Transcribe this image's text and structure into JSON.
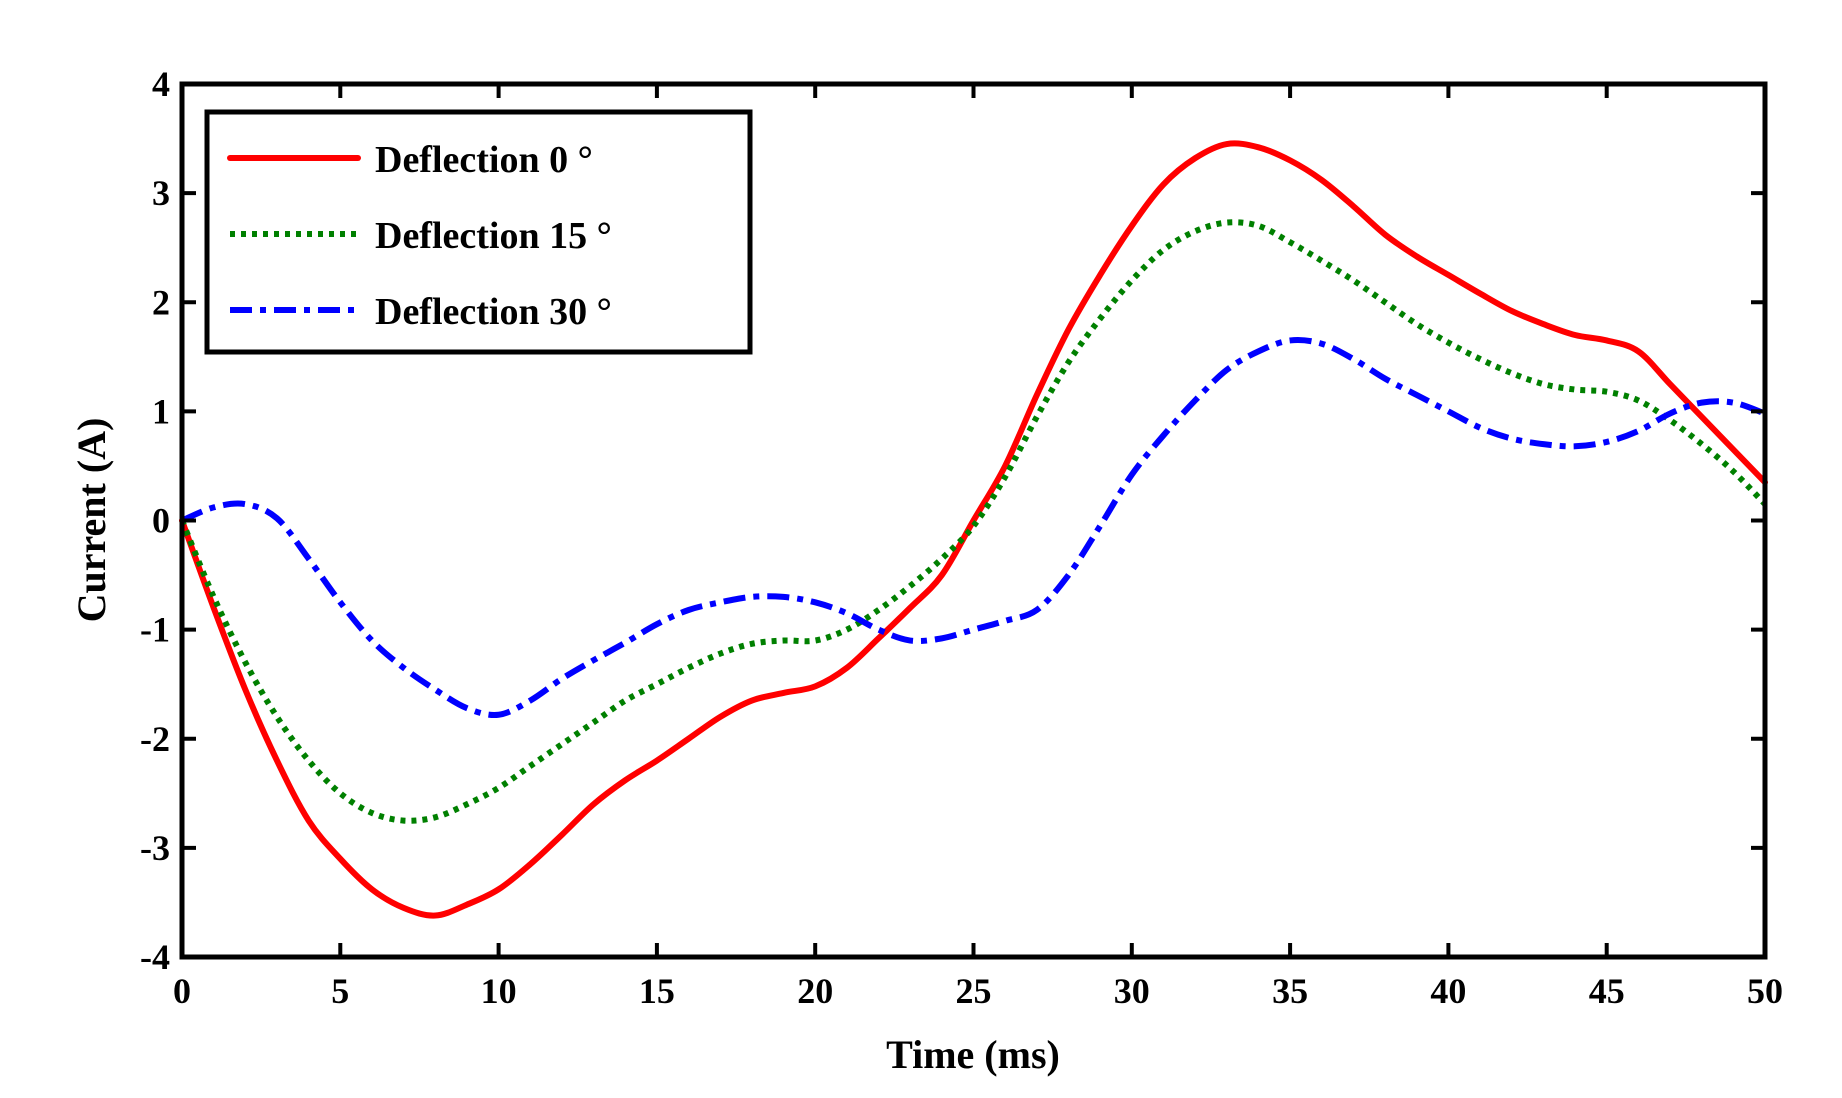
{
  "chart_data": {
    "type": "line",
    "title": "",
    "xlabel": "Time (ms)",
    "ylabel": "Current (A)",
    "xlim": [
      0,
      50
    ],
    "ylim": [
      -4,
      4
    ],
    "xticks": [
      0,
      5,
      10,
      15,
      20,
      25,
      30,
      35,
      40,
      45,
      50
    ],
    "yticks": [
      -4,
      -3,
      -2,
      -1,
      0,
      1,
      2,
      3,
      4
    ],
    "grid": false,
    "legend_position": "top-left",
    "series": [
      {
        "name": "Deflection 0 °",
        "color": "#ff0000",
        "style": "solid",
        "x": [
          0,
          1,
          2,
          3,
          4,
          5,
          6,
          7,
          8,
          9,
          10,
          11,
          12,
          13,
          14,
          15,
          16,
          17,
          18,
          19,
          20,
          21,
          22,
          23,
          24,
          25,
          26,
          27,
          28,
          29,
          30,
          31,
          32,
          33,
          34,
          35,
          36,
          37,
          38,
          39,
          40,
          41,
          42,
          43,
          44,
          45,
          46,
          47,
          48,
          49,
          50
        ],
        "y": [
          0,
          -0.8,
          -1.55,
          -2.2,
          -2.75,
          -3.1,
          -3.38,
          -3.55,
          -3.62,
          -3.52,
          -3.38,
          -3.15,
          -2.88,
          -2.6,
          -2.38,
          -2.2,
          -2.0,
          -1.8,
          -1.65,
          -1.58,
          -1.52,
          -1.35,
          -1.08,
          -0.8,
          -0.5,
          0.0,
          0.5,
          1.15,
          1.75,
          2.25,
          2.7,
          3.08,
          3.32,
          3.45,
          3.42,
          3.3,
          3.12,
          2.88,
          2.62,
          2.42,
          2.25,
          2.08,
          1.92,
          1.8,
          1.7,
          1.65,
          1.55,
          1.25,
          0.95,
          0.65,
          0.35
        ]
      },
      {
        "name": "Deflection 15 °",
        "color": "#008000",
        "style": "dotted",
        "x": [
          0,
          1,
          2,
          3,
          4,
          5,
          6,
          7,
          8,
          9,
          10,
          11,
          12,
          13,
          14,
          15,
          16,
          17,
          18,
          19,
          20,
          21,
          22,
          23,
          24,
          25,
          26,
          27,
          28,
          29,
          30,
          31,
          32,
          33,
          34,
          35,
          36,
          37,
          38,
          39,
          40,
          41,
          42,
          43,
          44,
          45,
          46,
          47,
          48,
          49,
          50
        ],
        "y": [
          0,
          -0.7,
          -1.3,
          -1.8,
          -2.2,
          -2.5,
          -2.68,
          -2.75,
          -2.72,
          -2.6,
          -2.45,
          -2.25,
          -2.05,
          -1.85,
          -1.65,
          -1.5,
          -1.35,
          -1.22,
          -1.13,
          -1.1,
          -1.1,
          -1.0,
          -0.82,
          -0.6,
          -0.35,
          -0.05,
          0.4,
          0.95,
          1.45,
          1.85,
          2.2,
          2.48,
          2.65,
          2.73,
          2.7,
          2.55,
          2.38,
          2.2,
          2.0,
          1.8,
          1.63,
          1.48,
          1.35,
          1.25,
          1.2,
          1.18,
          1.1,
          0.92,
          0.7,
          0.45,
          0.15
        ]
      },
      {
        "name": "Deflection 30 °",
        "color": "#0000ff",
        "style": "dashdot",
        "x": [
          0,
          1,
          2,
          3,
          4,
          5,
          6,
          7,
          8,
          9,
          10,
          11,
          12,
          13,
          14,
          15,
          16,
          17,
          18,
          19,
          20,
          21,
          22,
          23,
          24,
          25,
          26,
          27,
          28,
          29,
          30,
          31,
          32,
          33,
          34,
          35,
          36,
          37,
          38,
          39,
          40,
          41,
          42,
          43,
          44,
          45,
          46,
          47,
          48,
          49,
          50
        ],
        "y": [
          0,
          0.12,
          0.15,
          0.02,
          -0.35,
          -0.75,
          -1.1,
          -1.35,
          -1.55,
          -1.72,
          -1.78,
          -1.65,
          -1.45,
          -1.28,
          -1.12,
          -0.95,
          -0.82,
          -0.75,
          -0.7,
          -0.7,
          -0.75,
          -0.85,
          -1.0,
          -1.1,
          -1.08,
          -1.0,
          -0.92,
          -0.82,
          -0.5,
          -0.05,
          0.42,
          0.78,
          1.1,
          1.38,
          1.55,
          1.65,
          1.62,
          1.48,
          1.3,
          1.15,
          1.0,
          0.85,
          0.75,
          0.7,
          0.68,
          0.72,
          0.82,
          0.98,
          1.08,
          1.08,
          0.98
        ]
      }
    ]
  }
}
